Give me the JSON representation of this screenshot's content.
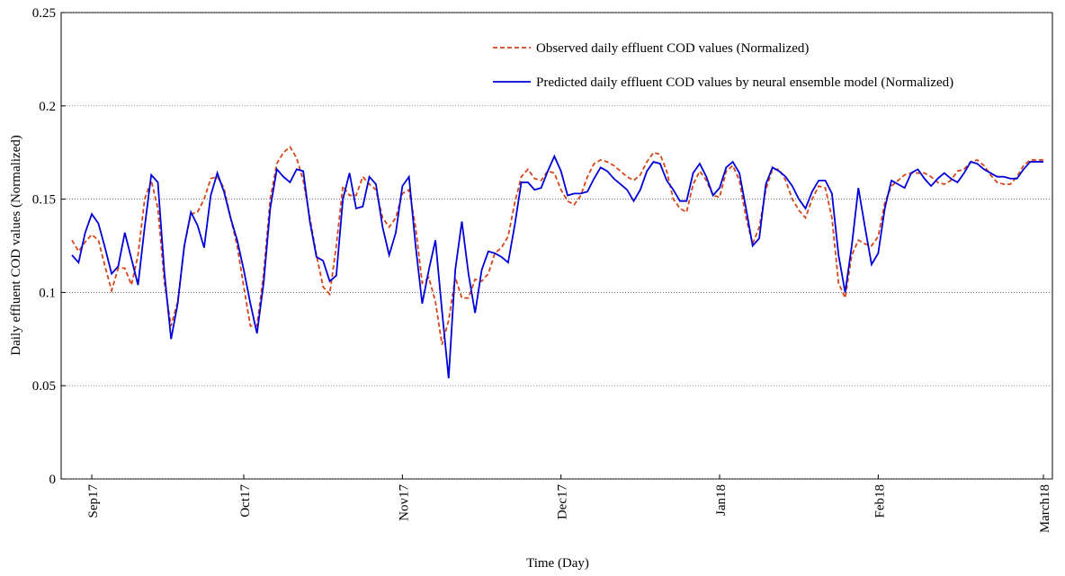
{
  "chart_data": {
    "type": "line",
    "ylabel": "Daily effluent COD values (Normalized)",
    "xlabel": "Time (Day)",
    "categories": [
      null,
      null,
      null,
      "Sep17",
      null,
      null,
      null,
      null,
      null,
      null,
      null,
      null,
      null,
      null,
      null,
      null,
      null,
      null,
      null,
      null,
      null,
      null,
      null,
      null,
      null,
      null,
      "Oct17",
      null,
      null,
      null,
      null,
      null,
      null,
      null,
      null,
      null,
      null,
      null,
      null,
      null,
      null,
      null,
      null,
      null,
      null,
      null,
      null,
      null,
      null,
      null,
      "Nov17",
      null,
      null,
      null,
      null,
      null,
      null,
      null,
      null,
      null,
      null,
      null,
      null,
      null,
      null,
      null,
      null,
      null,
      null,
      null,
      null,
      null,
      null,
      null,
      "Dec17",
      null,
      null,
      null,
      null,
      null,
      null,
      null,
      null,
      null,
      null,
      null,
      null,
      null,
      null,
      null,
      null,
      null,
      null,
      null,
      null,
      null,
      null,
      null,
      "Jan18",
      null,
      null,
      null,
      null,
      null,
      null,
      null,
      null,
      null,
      null,
      null,
      null,
      null,
      null,
      null,
      null,
      null,
      null,
      null,
      null,
      null,
      null,
      null,
      "Feb18",
      null,
      null,
      null,
      null,
      null,
      null,
      null,
      null,
      null,
      null,
      null,
      null,
      null,
      null,
      null,
      null,
      null,
      null,
      null,
      null,
      null,
      null,
      null,
      null,
      "March18"
    ],
    "series": [
      {
        "name": "Observed daily effluent COD values (Normalized)",
        "color": "#d4461a",
        "dash": true,
        "values": [
          0.128,
          0.122,
          0.127,
          0.131,
          0.128,
          0.114,
          0.101,
          0.113,
          0.113,
          0.104,
          0.12,
          0.15,
          0.16,
          0.145,
          0.105,
          0.082,
          0.095,
          0.125,
          0.142,
          0.143,
          0.15,
          0.161,
          0.162,
          0.156,
          0.14,
          0.125,
          0.103,
          0.082,
          0.082,
          0.11,
          0.15,
          0.169,
          0.175,
          0.178,
          0.172,
          0.16,
          0.14,
          0.12,
          0.103,
          0.099,
          0.125,
          0.157,
          0.152,
          0.152,
          0.162,
          0.158,
          0.155,
          0.14,
          0.135,
          0.14,
          0.153,
          0.155,
          0.135,
          0.105,
          0.108,
          0.095,
          0.072,
          0.085,
          0.108,
          0.097,
          0.097,
          0.107,
          0.106,
          0.11,
          0.121,
          0.124,
          0.13,
          0.148,
          0.162,
          0.166,
          0.161,
          0.16,
          0.165,
          0.164,
          0.155,
          0.149,
          0.147,
          0.152,
          0.162,
          0.169,
          0.171,
          0.17,
          0.168,
          0.165,
          0.162,
          0.16,
          0.163,
          0.17,
          0.175,
          0.174,
          0.165,
          0.15,
          0.145,
          0.143,
          0.158,
          0.165,
          0.16,
          0.152,
          0.151,
          0.165,
          0.168,
          0.16,
          0.14,
          0.126,
          0.135,
          0.155,
          0.166,
          0.166,
          0.16,
          0.15,
          0.144,
          0.14,
          0.15,
          0.157,
          0.156,
          0.14,
          0.105,
          0.097,
          0.12,
          0.128,
          0.126,
          0.125,
          0.13,
          0.148,
          0.157,
          0.16,
          0.163,
          0.164,
          0.164,
          0.164,
          0.162,
          0.159,
          0.158,
          0.16,
          0.165,
          0.166,
          0.17,
          0.171,
          0.168,
          0.163,
          0.159,
          0.158,
          0.158,
          0.162,
          0.168,
          0.171,
          0.171,
          0.171
        ]
      },
      {
        "name": "Predicted daily effluent COD values by neural ensemble model (Normalized)",
        "color": "#0000d8",
        "dash": false,
        "values": [
          0.12,
          0.116,
          0.132,
          0.142,
          0.137,
          0.124,
          0.11,
          0.114,
          0.132,
          0.118,
          0.104,
          0.135,
          0.163,
          0.159,
          0.11,
          0.075,
          0.094,
          0.125,
          0.143,
          0.136,
          0.124,
          0.152,
          0.164,
          0.154,
          0.14,
          0.128,
          0.112,
          0.094,
          0.078,
          0.105,
          0.145,
          0.166,
          0.162,
          0.159,
          0.166,
          0.165,
          0.138,
          0.119,
          0.117,
          0.106,
          0.109,
          0.15,
          0.164,
          0.145,
          0.146,
          0.162,
          0.158,
          0.135,
          0.12,
          0.132,
          0.157,
          0.162,
          0.125,
          0.094,
          0.112,
          0.128,
          0.09,
          0.054,
          0.112,
          0.138,
          0.11,
          0.089,
          0.112,
          0.122,
          0.121,
          0.119,
          0.116,
          0.136,
          0.159,
          0.159,
          0.155,
          0.156,
          0.165,
          0.173,
          0.165,
          0.152,
          0.153,
          0.153,
          0.154,
          0.161,
          0.167,
          0.165,
          0.161,
          0.158,
          0.155,
          0.149,
          0.155,
          0.165,
          0.17,
          0.169,
          0.16,
          0.155,
          0.149,
          0.149,
          0.164,
          0.169,
          0.162,
          0.152,
          0.156,
          0.167,
          0.17,
          0.164,
          0.145,
          0.125,
          0.129,
          0.158,
          0.167,
          0.165,
          0.162,
          0.157,
          0.15,
          0.145,
          0.154,
          0.16,
          0.16,
          0.153,
          0.12,
          0.1,
          0.125,
          0.156,
          0.135,
          0.115,
          0.121,
          0.145,
          0.16,
          0.158,
          0.156,
          0.164,
          0.166,
          0.161,
          0.157,
          0.161,
          0.164,
          0.161,
          0.159,
          0.164,
          0.17,
          0.169,
          0.166,
          0.164,
          0.162,
          0.162,
          0.161,
          0.161,
          0.166,
          0.17,
          0.17,
          0.17
        ]
      }
    ],
    "ylim": [
      0,
      0.25
    ],
    "yticks": [
      0,
      0.05,
      0.1,
      0.15,
      0.2,
      0.25
    ],
    "grid": true,
    "legend": "top"
  }
}
